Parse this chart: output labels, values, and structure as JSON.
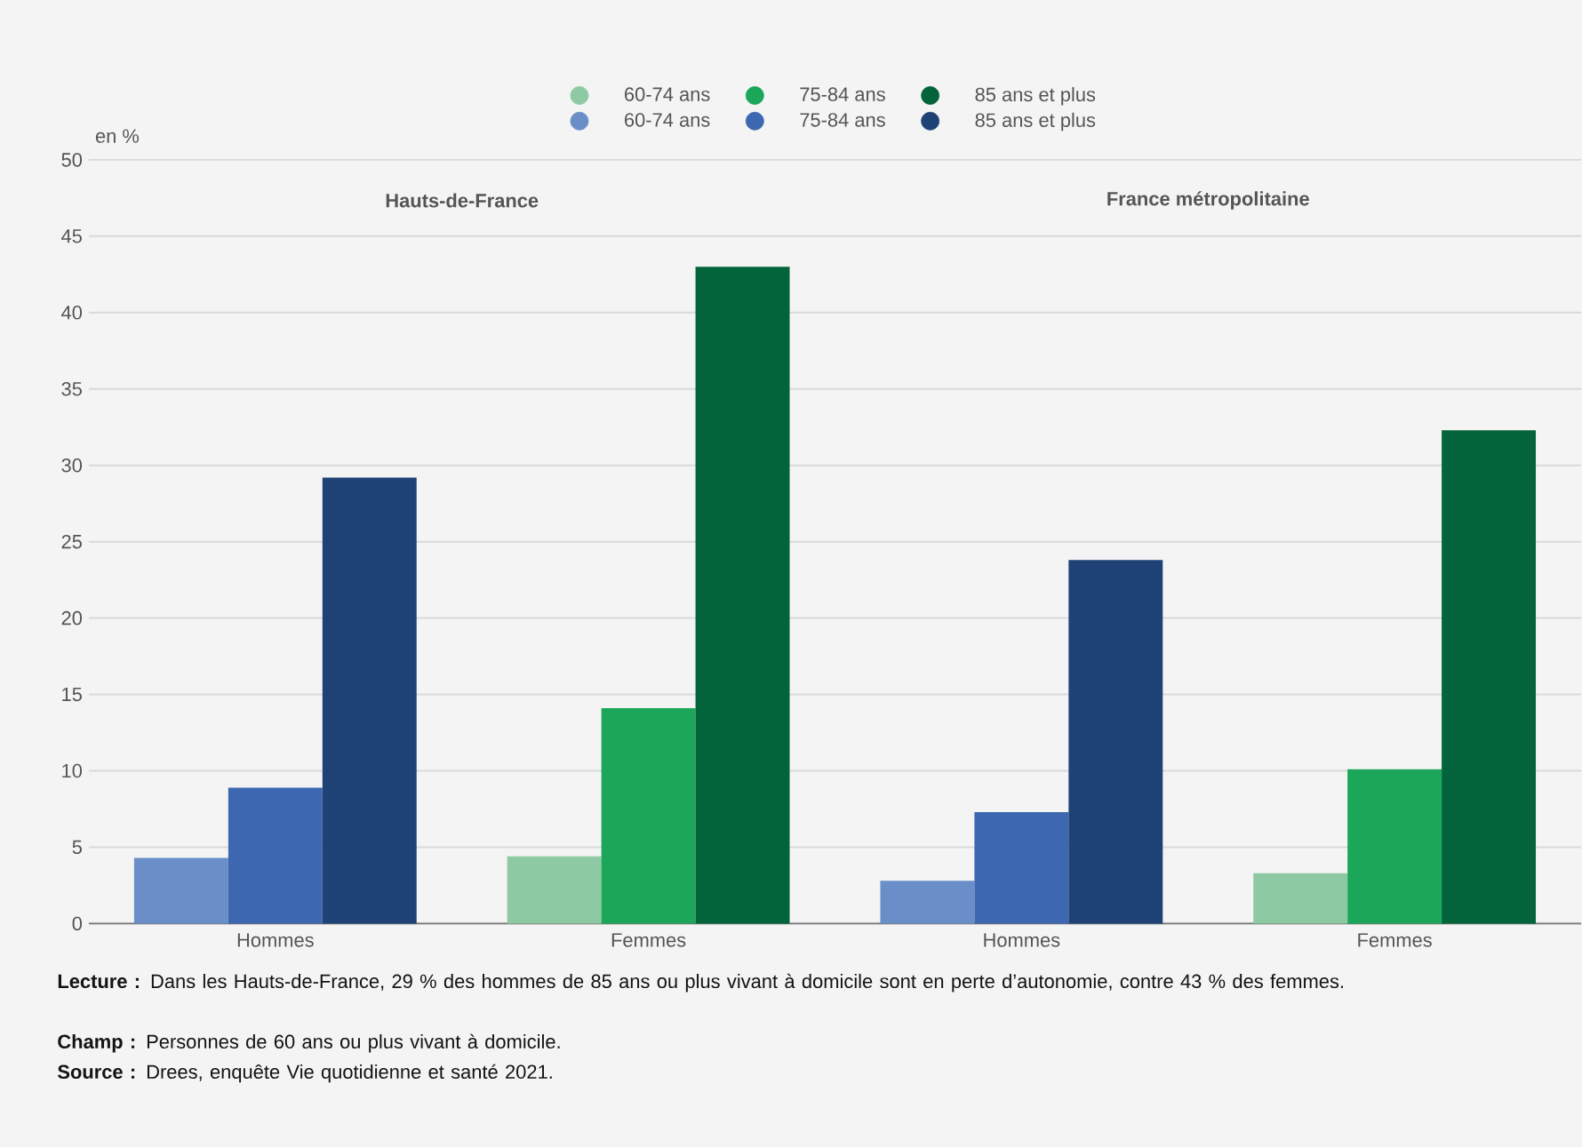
{
  "chart_data": {
    "type": "bar",
    "categories": [
      "Hommes",
      "Femmes",
      "Hommes",
      "Femmes"
    ],
    "ylabel": "en %",
    "series": [
      {
        "name": "60-74 ans",
        "color": "#8dc9a2",
        "values": [
          null,
          4.4,
          null,
          3.3
        ]
      },
      {
        "name": "75-84 ans",
        "color": "#1ca65a",
        "values": [
          null,
          14.1,
          null,
          10.1
        ]
      },
      {
        "name": "85 ans et plus",
        "color": "#03633a",
        "values": [
          null,
          43.0,
          null,
          32.3
        ]
      },
      {
        "name": "60-74 ans",
        "color": "#6a8fc8",
        "values": [
          4.3,
          null,
          2.8,
          null
        ]
      },
      {
        "name": "75-84 ans",
        "color": "#3d67b0",
        "values": [
          8.9,
          null,
          7.3,
          null
        ]
      },
      {
        "name": "85 ans et plus",
        "color": "#1f4276",
        "values": [
          29.2,
          null,
          23.8,
          null
        ]
      }
    ],
    "ylim": [
      0,
      50
    ],
    "yticks": [
      0,
      5,
      10,
      15,
      20,
      25,
      30,
      35,
      40,
      45,
      50
    ],
    "grid": "y",
    "legend": "top",
    "marker": "circle",
    "annotations": [
      "Hauts-de-France",
      "France métropolitaine",
      "**Lecture :** Dans les Hauts-de-France, 29 % des hommes de 85 ans ou plus vivant à domicile sont en perte d’autonomie, contre 43 % des femmes.",
      "**Champ :** Personnes de 60 ans ou plus vivant à domicile.",
      "**Source :** Drees, enquête Vie quotidienne et santé 2021."
    ]
  }
}
